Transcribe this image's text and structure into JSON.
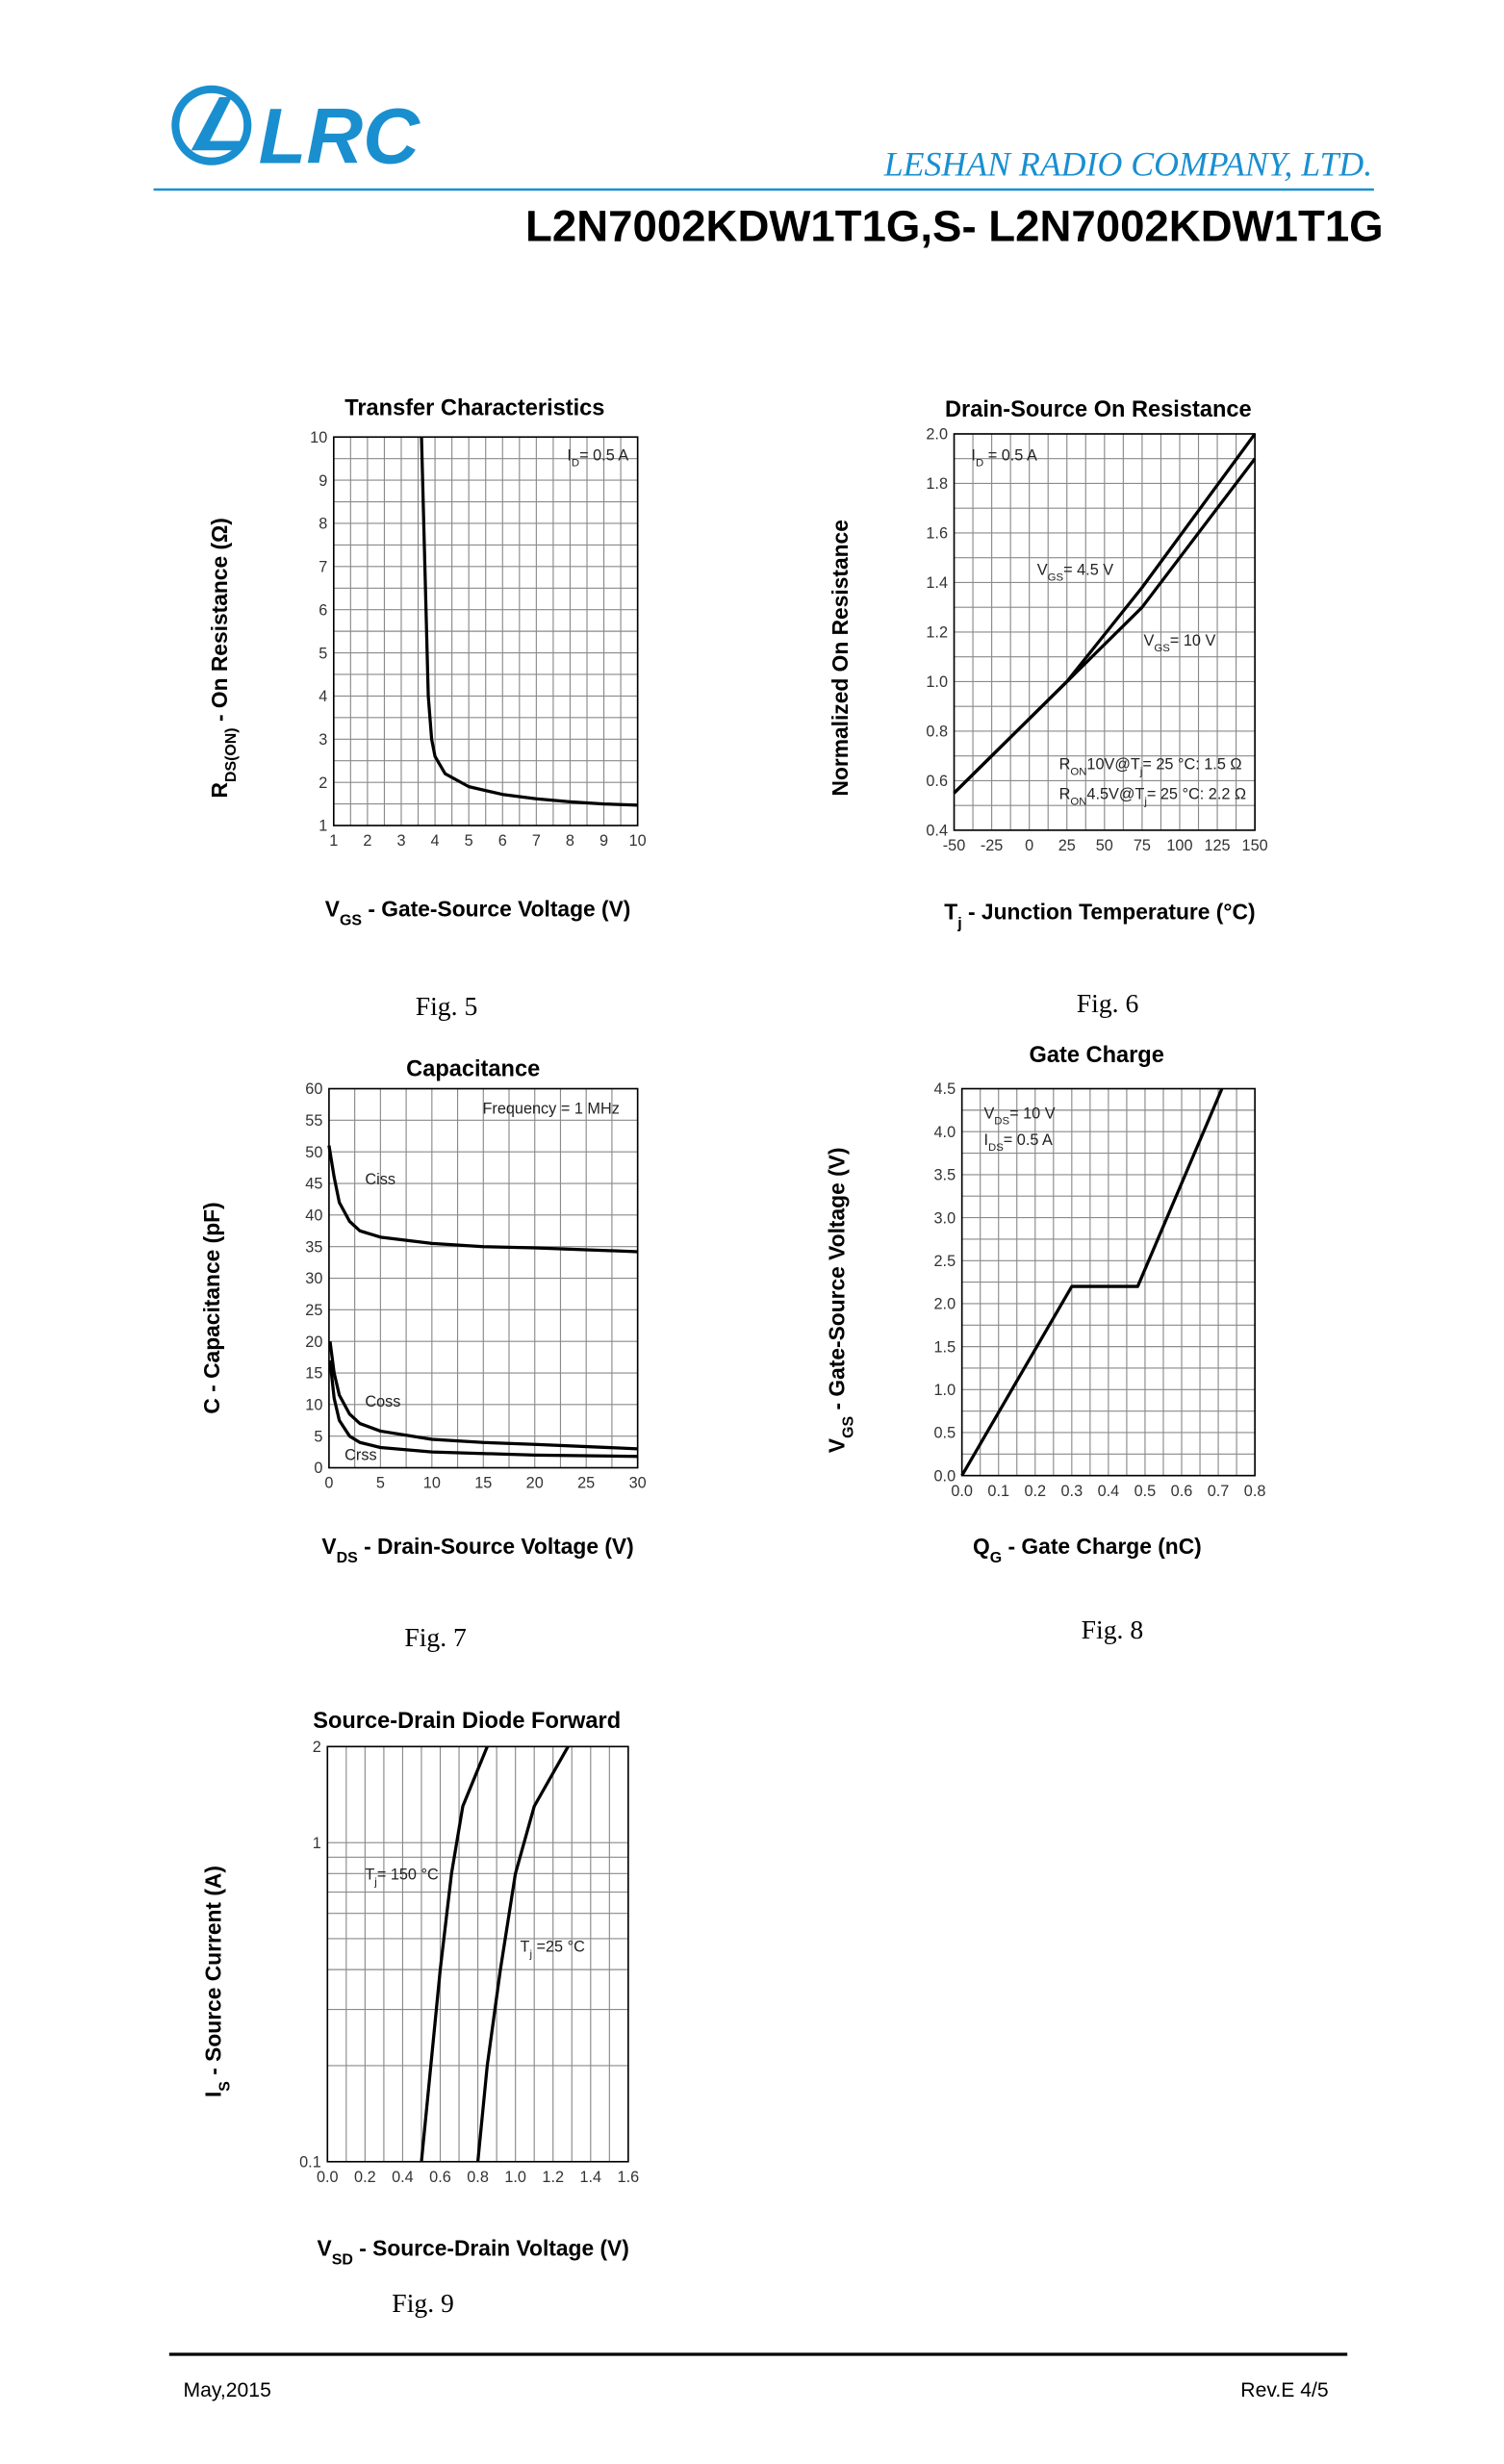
{
  "header": {
    "logo": "LRC",
    "company": "LESHAN RADIO COMPANY, LTD.",
    "part": "L2N7002KDW1T1G,S- L2N7002KDW1T1G"
  },
  "chart_data": [
    {
      "type": "line",
      "title": "Transfer Characteristics",
      "caption": "Fig.  5",
      "xlabel": [
        "V",
        {
          "sub": "GS"
        },
        " - Gate-Source Voltage (V)"
      ],
      "ylabel": [
        "R",
        {
          "sub": "DS(ON)"
        },
        " - On Resistance (Ω)"
      ],
      "xlim": [
        1,
        10
      ],
      "xticks": [
        1,
        2,
        3,
        4,
        5,
        6,
        7,
        8,
        9,
        10
      ],
      "ylim": [
        1,
        10
      ],
      "yticks": [
        1,
        2,
        3,
        4,
        5,
        6,
        7,
        8,
        9,
        10
      ],
      "grid": true,
      "annotations": [
        [
          "I",
          {
            "sub": "D"
          },
          "= 0.5 A"
        ]
      ],
      "series": [
        {
          "color": "#000000",
          "x": [
            3.6,
            3.7,
            3.8,
            3.9,
            4.0,
            4.3,
            5,
            6,
            7,
            8,
            9,
            10
          ],
          "values": [
            10,
            7,
            4,
            3,
            2.6,
            2.2,
            1.9,
            1.72,
            1.62,
            1.55,
            1.5,
            1.47
          ]
        }
      ]
    },
    {
      "type": "line",
      "title": "Drain-Source On Resistance",
      "caption": "Fig.  6",
      "xlabel": [
        "T",
        {
          "sub": "j"
        },
        " - Junction Temperature (°C)"
      ],
      "ylabel": [
        "Normalized On Resistance"
      ],
      "xlim": [
        -50,
        150
      ],
      "xticks": [
        -50,
        -25,
        0,
        25,
        50,
        75,
        100,
        125,
        150
      ],
      "ylim": [
        0.4,
        2.0
      ],
      "yticks": [
        0.4,
        0.6,
        0.8,
        {
          "value": 1.0,
          "label": "1.0"
        },
        1.2,
        1.4,
        1.6,
        1.8,
        {
          "value": 2.0,
          "label": "2.0"
        }
      ],
      "grid": true,
      "annotations": [
        [
          "I",
          {
            "sub": "D"
          },
          " = 0.5 A"
        ],
        [
          "R",
          {
            "sub": "ON"
          },
          "10V@T",
          {
            "sub": "j"
          },
          "= 25 °C: 1.5 Ω"
        ],
        [
          "R",
          {
            "sub": "ON"
          },
          "4.5V@T",
          {
            "sub": "j"
          },
          "= 25 °C: 2.2 Ω"
        ]
      ],
      "series": [
        {
          "name": [
            "V",
            {
              "sub": "GS"
            },
            "= 4.5 V"
          ],
          "color": "#000000",
          "x": [
            -50,
            25,
            75,
            150
          ],
          "values": [
            0.55,
            1.0,
            1.38,
            2.0
          ]
        },
        {
          "name": [
            "V",
            {
              "sub": "GS"
            },
            "= 10 V"
          ],
          "color": "#000000",
          "x": [
            -50,
            25,
            75,
            150
          ],
          "values": [
            0.55,
            1.0,
            1.3,
            1.9
          ]
        }
      ]
    },
    {
      "type": "line",
      "title": "Capacitance",
      "caption": "Fig.  7",
      "xlabel": [
        "V",
        {
          "sub": "DS"
        },
        " - Drain-Source Voltage (V)"
      ],
      "ylabel": [
        "C - Capacitance (pF)"
      ],
      "xlim": [
        0,
        30
      ],
      "xticks": [
        0,
        5,
        10,
        15,
        20,
        25,
        30
      ],
      "ylim": [
        0,
        60
      ],
      "yticks": [
        0,
        5,
        10,
        15,
        20,
        25,
        30,
        35,
        40,
        45,
        50,
        55,
        60
      ],
      "grid": true,
      "annotations": [
        [
          "Frequency = 1 MHz"
        ]
      ],
      "series": [
        {
          "name": [
            "Ciss"
          ],
          "color": "#000000",
          "x": [
            0,
            0.5,
            1,
            2,
            3,
            5,
            10,
            15,
            20,
            25,
            30
          ],
          "values": [
            51,
            46,
            42,
            39,
            37.5,
            36.5,
            35.5,
            35,
            34.8,
            34.5,
            34.2
          ]
        },
        {
          "name": [
            "Coss"
          ],
          "color": "#000000",
          "x": [
            0.1,
            0.5,
            1,
            2,
            3,
            5,
            10,
            15,
            20,
            30
          ],
          "values": [
            20,
            15,
            11.5,
            8.5,
            7,
            5.8,
            4.5,
            4,
            3.7,
            3
          ]
        },
        {
          "name": [
            "Crss"
          ],
          "color": "#000000",
          "x": [
            0.1,
            0.5,
            1,
            2,
            3,
            5,
            10,
            20,
            30
          ],
          "values": [
            17,
            11,
            7.5,
            5,
            4,
            3.2,
            2.5,
            2,
            1.8
          ]
        }
      ]
    },
    {
      "type": "line",
      "title": "Gate Charge",
      "caption": "Fig.  8",
      "xlabel": [
        "Q",
        {
          "sub": "G"
        },
        " - Gate Charge (nC)"
      ],
      "ylabel": [
        "V",
        {
          "sub": "GS"
        },
        " - Gate-Source Voltage (V)"
      ],
      "xlim": [
        0,
        0.8
      ],
      "xticks": [
        {
          "value": 0,
          "label": "0.0"
        },
        0.1,
        0.2,
        0.3,
        0.4,
        0.5,
        0.6,
        0.7,
        0.8
      ],
      "ylim": [
        0,
        4.5
      ],
      "yticks": [
        {
          "value": 0,
          "label": "0.0"
        },
        0.5,
        {
          "value": 1,
          "label": "1.0"
        },
        1.5,
        {
          "value": 2,
          "label": "2.0"
        },
        2.5,
        {
          "value": 3,
          "label": "3.0"
        },
        3.5,
        {
          "value": 4,
          "label": "4.0"
        },
        4.5
      ],
      "grid": true,
      "annotations": [
        [
          "V",
          {
            "sub": "DS"
          },
          "= 10 V"
        ],
        [
          "I",
          {
            "sub": "DS"
          },
          "= 0.5 A"
        ]
      ],
      "series": [
        {
          "color": "#000000",
          "x": [
            0,
            0.3,
            0.48,
            0.71
          ],
          "values": [
            0,
            2.2,
            2.2,
            4.5
          ]
        }
      ]
    },
    {
      "type": "line",
      "title": "Source-Drain Diode Forward",
      "caption": "Fig.  9",
      "xlabel": [
        "V",
        {
          "sub": "SD"
        },
        " - Source-Drain Voltage (V)"
      ],
      "ylabel": [
        "I",
        {
          "sub": "S"
        },
        " - Source Current (A)"
      ],
      "xlim": [
        0,
        1.6
      ],
      "xticks": [
        {
          "value": 0,
          "label": "0.0"
        },
        0.2,
        0.4,
        0.6,
        0.8,
        {
          "value": 1,
          "label": "1.0"
        },
        1.2,
        1.4,
        1.6
      ],
      "ylim": [
        0.1,
        2
      ],
      "yticks": [
        0.1,
        1,
        2
      ],
      "yscale": "log",
      "grid": true,
      "series": [
        {
          "name": [
            "T",
            {
              "sub": "j"
            },
            "= 150 °C"
          ],
          "color": "#000000",
          "x": [
            0.5,
            0.55,
            0.6,
            0.66,
            0.72,
            0.85
          ],
          "values": [
            0.1,
            0.2,
            0.4,
            0.8,
            1.3,
            2
          ]
        },
        {
          "name": [
            "T",
            {
              "sub": "j"
            },
            " =25 °C"
          ],
          "color": "#000000",
          "x": [
            0.8,
            0.85,
            0.92,
            1.0,
            1.1,
            1.28
          ],
          "values": [
            0.1,
            0.2,
            0.4,
            0.8,
            1.3,
            2
          ]
        }
      ]
    }
  ],
  "footer": {
    "date": "May,2015",
    "rev": "Rev.E 4/5"
  }
}
